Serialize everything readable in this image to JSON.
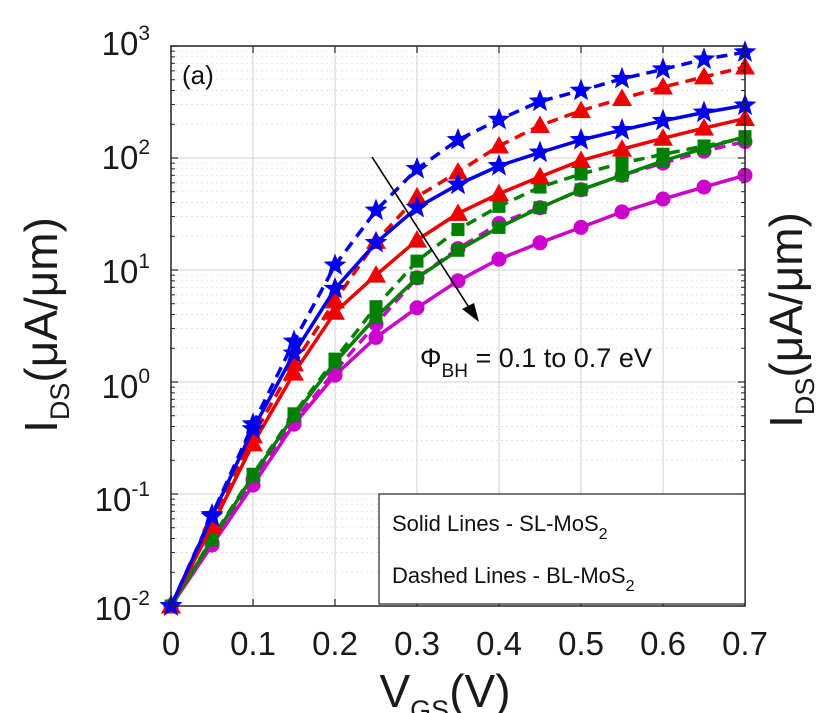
{
  "chart_data": {
    "type": "line",
    "panel_label": "(a)",
    "x": [
      0,
      0.05,
      0.1,
      0.15,
      0.2,
      0.25,
      0.3,
      0.35,
      0.4,
      0.45,
      0.5,
      0.55,
      0.6,
      0.65,
      0.7
    ],
    "xlim": [
      0,
      0.7
    ],
    "x_ticks": [
      "0",
      "0.1",
      "0.2",
      "0.3",
      "0.4",
      "0.5",
      "0.6",
      "0.7"
    ],
    "y_scale": "log",
    "ylim": [
      0.01,
      1000
    ],
    "y_ticks": [
      {
        "base": "10",
        "exp": "-2"
      },
      {
        "base": "10",
        "exp": "-1"
      },
      {
        "base": "10",
        "exp": "0"
      },
      {
        "base": "10",
        "exp": "1"
      },
      {
        "base": "10",
        "exp": "2"
      },
      {
        "base": "10",
        "exp": "3"
      }
    ],
    "xlabel": {
      "main": "V",
      "sub": "GS",
      "rest": "(V)"
    },
    "ylabel": {
      "main": "I",
      "sub": "DS",
      "rest": "(μA/μm)"
    },
    "grid": true,
    "annotation": {
      "main": "Φ",
      "sub": "BH",
      "rest": " = 0.1  to 0.7 eV"
    },
    "legend": {
      "line1": {
        "main": "Solid Lines - SL-MoS",
        "sub": "2"
      },
      "line2": {
        "main": "Dashed Lines - BL-MoS",
        "sub": "2"
      }
    },
    "series": [
      {
        "name": "BL-MoS2 ΦBH 0.1 eV",
        "style": "dashed",
        "marker": "star",
        "color": "#0000ee",
        "values": [
          0.01,
          0.065,
          0.42,
          2.3,
          11,
          34,
          80,
          145,
          220,
          320,
          400,
          510,
          620,
          760,
          880
        ]
      },
      {
        "name": "SL-MoS2 ΦBH 0.1 eV",
        "style": "solid",
        "marker": "star",
        "color": "#0000ee",
        "values": [
          0.01,
          0.063,
          0.38,
          1.8,
          6.8,
          17.5,
          36,
          58,
          85,
          112,
          145,
          178,
          215,
          255,
          295
        ]
      },
      {
        "name": "BL-MoS2 mid ΦBH",
        "style": "dashed",
        "marker": "triangle",
        "color": "#ee0000",
        "values": [
          0.01,
          0.055,
          0.33,
          1.45,
          5.3,
          18,
          45,
          75,
          128,
          195,
          265,
          340,
          430,
          530,
          650
        ]
      },
      {
        "name": "SL-MoS2 mid ΦBH",
        "style": "solid",
        "marker": "triangle",
        "color": "#ee0000",
        "values": [
          0.01,
          0.052,
          0.28,
          1.2,
          4.2,
          9,
          18.5,
          32,
          48,
          68,
          95,
          120,
          150,
          185,
          225
        ]
      },
      {
        "name": "BL-MoS2 ΦBH 0.7 eV region",
        "style": "dashed",
        "marker": "square",
        "color": "#008000",
        "values": [
          0.01,
          0.04,
          0.15,
          0.52,
          1.6,
          4.7,
          12,
          23,
          37,
          55,
          72,
          90,
          108,
          128,
          150
        ]
      },
      {
        "name": "SL-MoS2 ΦBH 0.7 eV region",
        "style": "solid",
        "marker": "square",
        "color": "#008000",
        "values": [
          0.01,
          0.039,
          0.145,
          0.5,
          1.5,
          3.8,
          8.5,
          15,
          24,
          36,
          52,
          70,
          94,
          122,
          155
        ]
      },
      {
        "name": "BL-MoS2 ΦBH 0.7 eV",
        "style": "dashed",
        "marker": "circle",
        "color": "#cc00cc",
        "values": [
          0.01,
          0.037,
          0.135,
          0.45,
          1.25,
          3.3,
          8.5,
          15.5,
          26,
          36,
          52,
          70,
          90,
          115,
          140
        ]
      },
      {
        "name": "SL-MoS2 ΦBH 0.7 eV",
        "style": "solid",
        "marker": "circle",
        "color": "#cc00cc",
        "values": [
          0.01,
          0.035,
          0.12,
          0.42,
          1.15,
          2.5,
          4.6,
          8,
          12.5,
          17.5,
          24,
          33,
          43,
          55,
          70
        ]
      }
    ]
  }
}
